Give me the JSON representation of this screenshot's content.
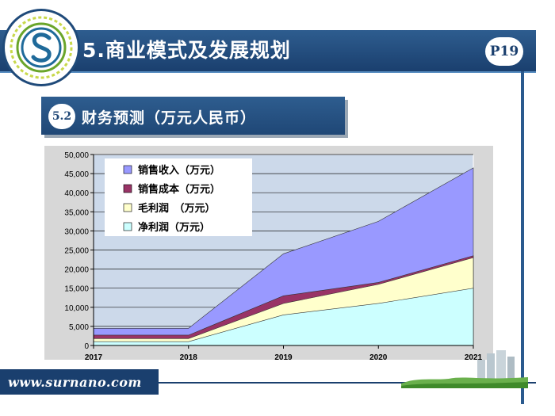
{
  "slide": {
    "title": "5.商业模式及发展规划",
    "page": "P19",
    "section_number": "5.2",
    "section_title": "财务预测（万元人民币）",
    "website": "www.surnano.com"
  },
  "colors": {
    "header": "#1a3f6e",
    "revenue": "#9999ff",
    "cost": "#993366",
    "gross_profit": "#ffffcc",
    "net_profit": "#ccffff",
    "plot_bg": "#ccd9ea"
  },
  "chart_data": {
    "type": "area",
    "x": [
      "2017",
      "2018",
      "2019",
      "2020",
      "2021"
    ],
    "series": [
      {
        "name": "销售收入（万元）",
        "values": [
          4500,
          4500,
          24000,
          32500,
          46500
        ]
      },
      {
        "name": "销售成本（万元）",
        "values": [
          2700,
          2700,
          13000,
          16500,
          23500
        ]
      },
      {
        "name": "毛利润　（万元）",
        "values": [
          1800,
          1800,
          11000,
          16000,
          23000
        ]
      },
      {
        "name": "净利润（万元）",
        "values": [
          1000,
          1000,
          8000,
          11000,
          15000
        ]
      }
    ],
    "ylim": [
      0,
      50000
    ],
    "yticks": [
      "0",
      "5,000",
      "10,000",
      "15,000",
      "20,000",
      "25,000",
      "30,000",
      "35,000",
      "40,000",
      "45,000",
      "50,000"
    ],
    "grid": true,
    "legend": "top-left"
  }
}
